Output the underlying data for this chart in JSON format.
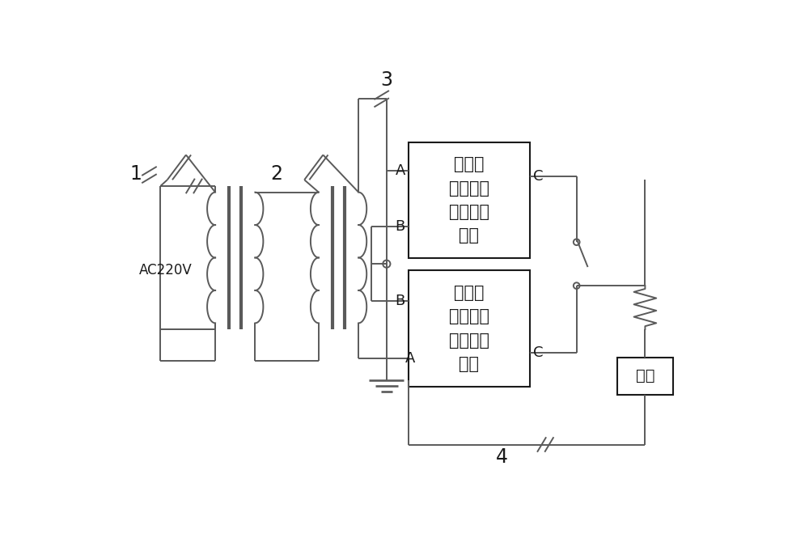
{
  "bg_color": "#ffffff",
  "line_color": "#5a5a5a",
  "box_color": "#1a1a1a",
  "text_color": "#1a1a1a",
  "figsize": [
    10.0,
    6.65
  ],
  "dpi": 100,
  "box1_lines": [
    "正极性",
    "直流高压",
    "串级发生",
    "电路"
  ],
  "box2_lines": [
    "负极性",
    "直流高压",
    "串级发生",
    "电路"
  ],
  "label_shipin": "试品",
  "label_ac": "AC220V",
  "labels_num": [
    "1",
    "2",
    "3",
    "4"
  ]
}
